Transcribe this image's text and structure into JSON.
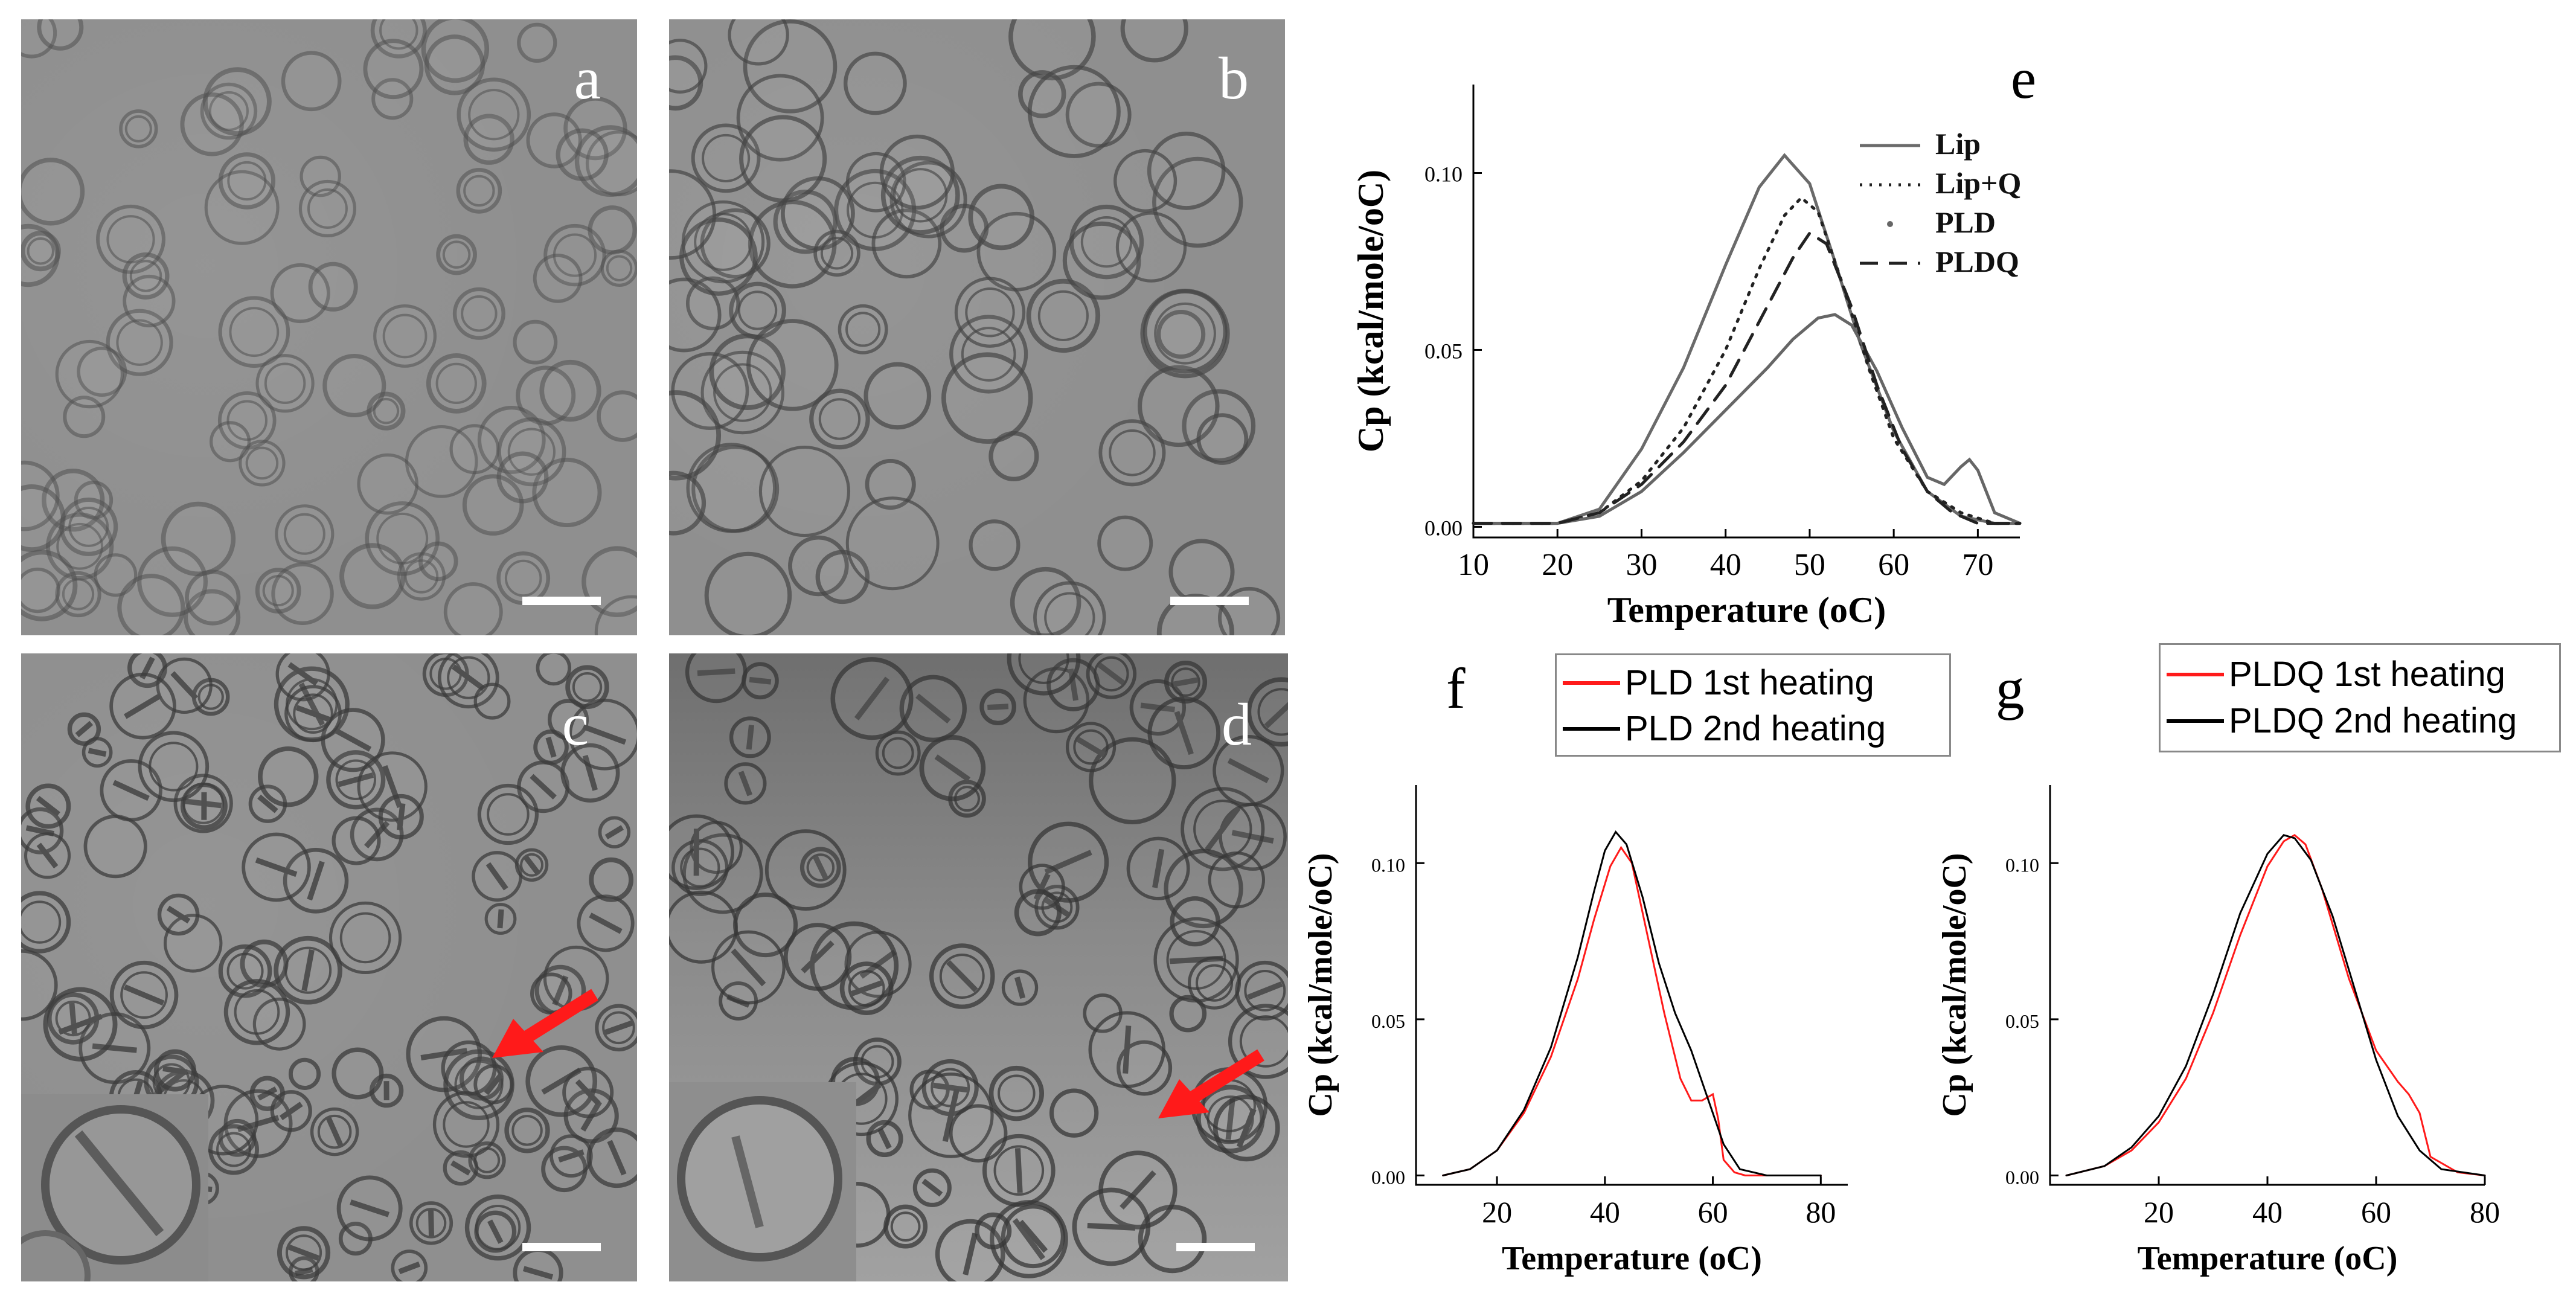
{
  "micrographs": {
    "a": {
      "label": "a"
    },
    "b": {
      "label": "b"
    },
    "c": {
      "label": "c"
    },
    "d": {
      "label": "d"
    }
  },
  "panel_letters": {
    "e": "e",
    "f": "f",
    "g": "g"
  },
  "colors": {
    "red": "#ff1a1a",
    "black": "#000000",
    "grey": "#666666"
  },
  "legend_f": [
    {
      "label": "PLD 1st heating",
      "color": "#ff1a1a"
    },
    {
      "label": "PLD 2nd heating",
      "color": "#000000"
    }
  ],
  "legend_g": [
    {
      "label": "PLDQ 1st heating",
      "color": "#ff1a1a"
    },
    {
      "label": "PLDQ 2nd heating",
      "color": "#000000"
    }
  ],
  "chart_data": [
    {
      "panel": "e",
      "type": "line",
      "xlabel": "Temperature (oC)",
      "ylabel": "Cp (kcal/mole/oC)",
      "xlim": [
        10,
        75
      ],
      "ylim": [
        -0.003,
        0.125
      ],
      "xticks": [
        10,
        20,
        30,
        40,
        50,
        60,
        70
      ],
      "yticks": [
        0.0,
        0.05,
        0.1
      ],
      "ytick_labels": [
        "0.00",
        "0.05",
        "0.10"
      ],
      "legend": [
        "Lip",
        "Lip+Q",
        "PLD",
        "PLDQ"
      ],
      "legend_position": "top-right",
      "series": [
        {
          "name": "Lip",
          "style": "solid",
          "x": [
            10,
            20,
            25,
            30,
            35,
            40,
            44,
            47,
            50,
            53,
            56,
            60,
            64,
            68,
            72,
            75
          ],
          "y": [
            0.001,
            0.001,
            0.005,
            0.022,
            0.045,
            0.074,
            0.096,
            0.105,
            0.097,
            0.075,
            0.052,
            0.027,
            0.01,
            0.003,
            0.001,
            0.001
          ]
        },
        {
          "name": "Lip+Q",
          "style": "dotted",
          "x": [
            10,
            20,
            25,
            30,
            35,
            40,
            44,
            47,
            49,
            51,
            54,
            57,
            60,
            64,
            68,
            72,
            75
          ],
          "y": [
            0.001,
            0.001,
            0.004,
            0.013,
            0.028,
            0.05,
            0.073,
            0.088,
            0.093,
            0.089,
            0.068,
            0.045,
            0.025,
            0.01,
            0.004,
            0.001,
            0.001
          ]
        },
        {
          "name": "PLD",
          "style": "solid",
          "x": [
            10,
            20,
            25,
            30,
            35,
            40,
            45,
            48,
            51,
            53,
            55,
            58,
            61,
            64,
            66,
            68,
            69,
            70,
            72,
            75
          ],
          "y": [
            0.001,
            0.001,
            0.003,
            0.01,
            0.021,
            0.033,
            0.045,
            0.053,
            0.059,
            0.06,
            0.057,
            0.044,
            0.028,
            0.014,
            0.012,
            0.017,
            0.019,
            0.016,
            0.004,
            0.001
          ]
        },
        {
          "name": "PLDQ",
          "style": "dashed",
          "x": [
            10,
            20,
            25,
            30,
            35,
            40,
            44,
            48,
            50,
            52,
            55,
            58,
            61,
            64,
            67,
            70,
            75
          ],
          "y": [
            0.001,
            0.001,
            0.004,
            0.012,
            0.024,
            0.04,
            0.058,
            0.076,
            0.083,
            0.08,
            0.062,
            0.04,
            0.022,
            0.01,
            0.004,
            0.001,
            0.001
          ]
        }
      ]
    },
    {
      "panel": "f",
      "type": "line",
      "xlabel": "Temperature (oC)",
      "ylabel": "Cp (kcal/mole/oC)",
      "xlim": [
        5,
        85
      ],
      "ylim": [
        -0.003,
        0.125
      ],
      "xticks": [
        20,
        40,
        60,
        80
      ],
      "yticks": [
        0.0,
        0.05,
        0.1
      ],
      "ytick_labels": [
        "0.00",
        "0.05",
        "0.10"
      ],
      "series": [
        {
          "name": "PLD 1st heating",
          "color": "#ff1a1a",
          "x": [
            10,
            15,
            20,
            25,
            30,
            35,
            38,
            41,
            43,
            45,
            48,
            51,
            54,
            56,
            58,
            60,
            61,
            62,
            64,
            66,
            75,
            80
          ],
          "y": [
            0.0,
            0.002,
            0.008,
            0.02,
            0.038,
            0.063,
            0.082,
            0.099,
            0.105,
            0.1,
            0.076,
            0.052,
            0.031,
            0.024,
            0.024,
            0.026,
            0.018,
            0.005,
            0.001,
            0.0,
            0.0,
            0.0
          ]
        },
        {
          "name": "PLD 2nd heating",
          "color": "#000000",
          "x": [
            10,
            15,
            20,
            25,
            30,
            35,
            38,
            40,
            42,
            44,
            47,
            50,
            53,
            56,
            59,
            62,
            65,
            70,
            80
          ],
          "y": [
            0.0,
            0.002,
            0.008,
            0.021,
            0.041,
            0.07,
            0.091,
            0.104,
            0.11,
            0.106,
            0.089,
            0.068,
            0.052,
            0.04,
            0.025,
            0.01,
            0.002,
            0.0,
            0.0
          ]
        }
      ]
    },
    {
      "panel": "g",
      "type": "line",
      "xlabel": "Temperature (oC)",
      "ylabel": "Cp (kcal/mole/oC)",
      "xlim": [
        0,
        80
      ],
      "ylim": [
        -0.003,
        0.125
      ],
      "xticks": [
        20,
        40,
        60,
        80
      ],
      "yticks": [
        0.0,
        0.05,
        0.1
      ],
      "ytick_labels": [
        "0.00",
        "0.05",
        "0.10"
      ],
      "series": [
        {
          "name": "PLDQ 1st heating",
          "color": "#ff1a1a",
          "x": [
            3,
            10,
            15,
            20,
            25,
            30,
            35,
            40,
            43,
            45,
            47,
            50,
            55,
            60,
            64,
            66,
            68,
            70,
            75,
            80
          ],
          "y": [
            0.0,
            0.003,
            0.008,
            0.017,
            0.031,
            0.052,
            0.077,
            0.099,
            0.107,
            0.109,
            0.106,
            0.092,
            0.063,
            0.04,
            0.03,
            0.026,
            0.02,
            0.006,
            0.001,
            0.0
          ]
        },
        {
          "name": "PLDQ 2nd heating",
          "color": "#000000",
          "x": [
            3,
            10,
            15,
            20,
            25,
            30,
            35,
            40,
            43,
            45,
            48,
            52,
            56,
            60,
            64,
            68,
            72,
            80
          ],
          "y": [
            0.0,
            0.003,
            0.009,
            0.019,
            0.035,
            0.058,
            0.084,
            0.103,
            0.109,
            0.108,
            0.101,
            0.083,
            0.06,
            0.037,
            0.019,
            0.008,
            0.002,
            0.0
          ]
        }
      ]
    }
  ]
}
